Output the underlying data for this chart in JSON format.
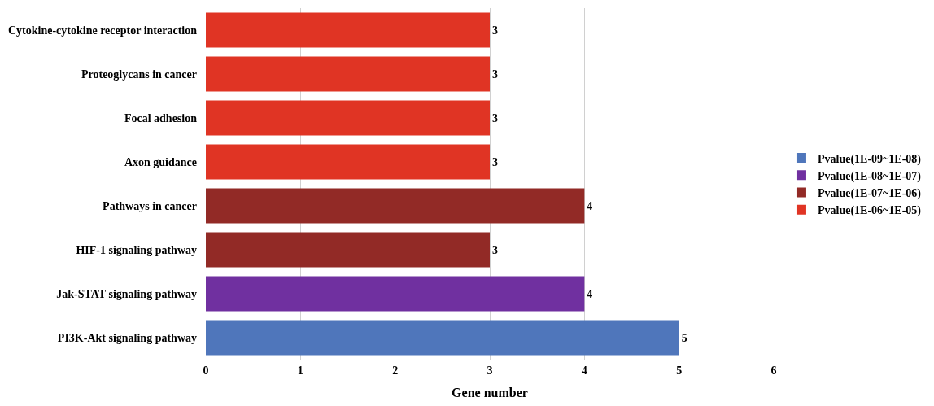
{
  "chart_data": {
    "type": "bar",
    "orientation": "horizontal",
    "xlabel": "Gene number",
    "categories": [
      "Cytokine-cytokine receptor interaction",
      "Proteoglycans in cancer",
      "Focal adhesion",
      "Axon guidance",
      "Pathways in cancer",
      "HIF-1 signaling pathway",
      "Jak-STAT signaling pathway",
      "PI3K-Akt signaling pathway"
    ],
    "series": [
      {
        "name": "Pvalue(1E-09~1E-08)",
        "color": "#4f76bb",
        "values": [
          null,
          null,
          null,
          null,
          null,
          null,
          null,
          5
        ]
      },
      {
        "name": "Pvalue(1E-08~1E-07)",
        "color": "#7030a0",
        "values": [
          null,
          null,
          null,
          null,
          null,
          null,
          4,
          null
        ]
      },
      {
        "name": "Pvalue(1E-07~1E-06)",
        "color": "#922a26",
        "values": [
          null,
          null,
          null,
          null,
          4,
          3,
          null,
          null
        ]
      },
      {
        "name": "Pvalue(1E-06~1E-05)",
        "color": "#e03424",
        "values": [
          3,
          3,
          3,
          3,
          null,
          null,
          null,
          null
        ]
      }
    ],
    "data_labels": true,
    "xlim": [
      0,
      6
    ],
    "xticks": [
      0,
      1,
      2,
      3,
      4,
      5,
      6
    ],
    "grid": "x",
    "legend": "right"
  }
}
